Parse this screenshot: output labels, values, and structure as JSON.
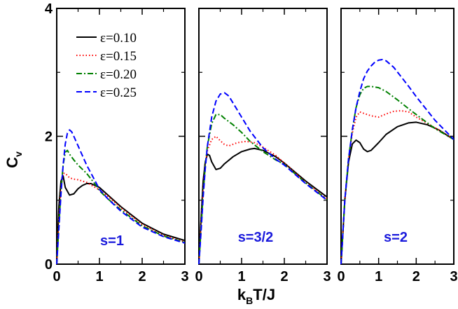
{
  "chart_data": {
    "type": "line",
    "ylabel": "C",
    "ylabel_sub": "v",
    "xlabel_prefix": "k",
    "xlabel_sub": "B",
    "xlabel_suffix": "T/J",
    "xlim": [
      0,
      3
    ],
    "ylim": [
      0,
      4
    ],
    "x_ticks": [
      "0",
      "1",
      "2",
      "3"
    ],
    "y_ticks": [
      "0",
      "2",
      "4"
    ],
    "legend": [
      {
        "label": "ε=0.10",
        "color": "#000000",
        "style": "solid"
      },
      {
        "label": "ε=0.15",
        "color": "#ff0000",
        "style": "dotted"
      },
      {
        "label": "ε=0.20",
        "color": "#008000",
        "style": "dashdot"
      },
      {
        "label": "ε=0.25",
        "color": "#0000ff",
        "style": "dashed"
      }
    ],
    "panels": [
      {
        "label": "s=1",
        "series": [
          {
            "name": "ε=0.10",
            "x": [
              0,
              0.05,
              0.1,
              0.15,
              0.2,
              0.3,
              0.4,
              0.5,
              0.6,
              0.7,
              0.8,
              1.0,
              1.2,
              1.5,
              2.0,
              2.5,
              3.0
            ],
            "y": [
              0,
              0.9,
              1.3,
              1.38,
              1.2,
              1.08,
              1.1,
              1.18,
              1.23,
              1.26,
              1.26,
              1.2,
              1.08,
              0.9,
              0.64,
              0.47,
              0.37
            ]
          },
          {
            "name": "ε=0.15",
            "x": [
              0,
              0.05,
              0.1,
              0.15,
              0.2,
              0.3,
              0.4,
              0.5,
              0.7,
              0.9,
              1.0,
              1.2,
              1.5,
              2.0,
              2.5,
              3.0
            ],
            "y": [
              0,
              0.7,
              1.2,
              1.42,
              1.42,
              1.35,
              1.33,
              1.32,
              1.28,
              1.2,
              1.16,
              1.06,
              0.88,
              0.62,
              0.45,
              0.35
            ]
          },
          {
            "name": "ε=0.20",
            "x": [
              0,
              0.05,
              0.1,
              0.15,
              0.2,
              0.25,
              0.3,
              0.4,
              0.5,
              0.7,
              0.9,
              1.0,
              1.2,
              1.5,
              2.0,
              2.5,
              3.0
            ],
            "y": [
              0,
              0.6,
              1.15,
              1.55,
              1.75,
              1.78,
              1.72,
              1.63,
              1.55,
              1.42,
              1.25,
              1.15,
              1.02,
              0.85,
              0.6,
              0.44,
              0.34
            ]
          },
          {
            "name": "ε=0.25",
            "x": [
              0,
              0.05,
              0.1,
              0.15,
              0.2,
              0.25,
              0.3,
              0.35,
              0.4,
              0.5,
              0.6,
              0.7,
              0.9,
              1.0,
              1.2,
              1.5,
              2.0,
              2.5,
              3.0
            ],
            "y": [
              0,
              0.55,
              1.1,
              1.55,
              1.88,
              2.05,
              2.1,
              2.07,
              2.0,
              1.85,
              1.7,
              1.55,
              1.3,
              1.17,
              1.02,
              0.83,
              0.58,
              0.43,
              0.33
            ]
          }
        ]
      },
      {
        "label": "s=3/2",
        "series": [
          {
            "name": "ε=0.10",
            "x": [
              0,
              0.05,
              0.1,
              0.15,
              0.2,
              0.25,
              0.3,
              0.4,
              0.5,
              0.6,
              0.8,
              1.0,
              1.2,
              1.3,
              1.5,
              1.8,
              2.0,
              2.5,
              3.0
            ],
            "y": [
              0,
              0.7,
              1.3,
              1.6,
              1.72,
              1.7,
              1.6,
              1.48,
              1.5,
              1.57,
              1.68,
              1.76,
              1.8,
              1.81,
              1.78,
              1.68,
              1.58,
              1.3,
              1.05
            ]
          },
          {
            "name": "ε=0.15",
            "x": [
              0,
              0.05,
              0.1,
              0.15,
              0.2,
              0.3,
              0.4,
              0.5,
              0.6,
              0.7,
              0.9,
              1.1,
              1.3,
              1.5,
              1.8,
              2.0,
              2.5,
              3.0
            ],
            "y": [
              0,
              0.6,
              1.15,
              1.55,
              1.78,
              1.95,
              2.0,
              1.93,
              1.87,
              1.85,
              1.9,
              1.92,
              1.9,
              1.83,
              1.7,
              1.58,
              1.28,
              1.02
            ]
          },
          {
            "name": "ε=0.20",
            "x": [
              0,
              0.05,
              0.1,
              0.15,
              0.2,
              0.3,
              0.4,
              0.5,
              0.6,
              0.8,
              1.0,
              1.2,
              1.5,
              1.8,
              2.0,
              2.5,
              3.0
            ],
            "y": [
              0,
              0.55,
              1.1,
              1.55,
              1.85,
              2.2,
              2.34,
              2.34,
              2.28,
              2.18,
              2.06,
              1.92,
              1.76,
              1.63,
              1.56,
              1.27,
              1.01
            ]
          },
          {
            "name": "ε=0.25",
            "x": [
              0,
              0.05,
              0.1,
              0.15,
              0.2,
              0.3,
              0.4,
              0.5,
              0.6,
              0.7,
              0.8,
              1.0,
              1.2,
              1.5,
              1.8,
              2.0,
              2.5,
              3.0
            ],
            "y": [
              0,
              0.5,
              1.05,
              1.5,
              1.85,
              2.3,
              2.55,
              2.66,
              2.68,
              2.63,
              2.52,
              2.3,
              2.08,
              1.82,
              1.64,
              1.55,
              1.26,
              1.0
            ]
          }
        ]
      },
      {
        "label": "s=2",
        "series": [
          {
            "name": "ε=0.10",
            "x": [
              0,
              0.05,
              0.1,
              0.2,
              0.3,
              0.4,
              0.5,
              0.6,
              0.7,
              0.8,
              1.0,
              1.2,
              1.5,
              1.8,
              2.0,
              2.3,
              2.6,
              3.0
            ],
            "y": [
              0,
              0.5,
              1.0,
              1.6,
              1.88,
              1.94,
              1.9,
              1.8,
              1.76,
              1.78,
              1.9,
              2.03,
              2.15,
              2.21,
              2.22,
              2.18,
              2.1,
              1.95
            ]
          },
          {
            "name": "ε=0.15",
            "x": [
              0,
              0.05,
              0.1,
              0.2,
              0.3,
              0.4,
              0.5,
              0.6,
              0.8,
              1.0,
              1.2,
              1.4,
              1.6,
              1.8,
              2.0,
              2.3,
              2.6,
              3.0
            ],
            "y": [
              0,
              0.5,
              1.0,
              1.65,
              2.05,
              2.3,
              2.38,
              2.36,
              2.32,
              2.3,
              2.35,
              2.39,
              2.4,
              2.38,
              2.3,
              2.2,
              2.1,
              1.95
            ]
          },
          {
            "name": "ε=0.20",
            "x": [
              0,
              0.05,
              0.1,
              0.2,
              0.3,
              0.4,
              0.5,
              0.6,
              0.7,
              0.8,
              1.0,
              1.2,
              1.5,
              1.8,
              2.0,
              2.5,
              3.0
            ],
            "y": [
              0,
              0.5,
              1.0,
              1.65,
              2.1,
              2.45,
              2.65,
              2.75,
              2.78,
              2.78,
              2.76,
              2.7,
              2.57,
              2.43,
              2.34,
              2.12,
              1.95
            ]
          },
          {
            "name": "ε=0.25",
            "x": [
              0,
              0.05,
              0.1,
              0.2,
              0.3,
              0.4,
              0.5,
              0.6,
              0.7,
              0.8,
              0.9,
              1.0,
              1.1,
              1.2,
              1.4,
              1.6,
              1.8,
              2.0,
              2.5,
              3.0
            ],
            "y": [
              0,
              0.5,
              1.0,
              1.65,
              2.1,
              2.45,
              2.7,
              2.9,
              3.02,
              3.1,
              3.16,
              3.19,
              3.2,
              3.18,
              3.08,
              2.93,
              2.78,
              2.62,
              2.25,
              1.95
            ]
          }
        ]
      }
    ]
  }
}
